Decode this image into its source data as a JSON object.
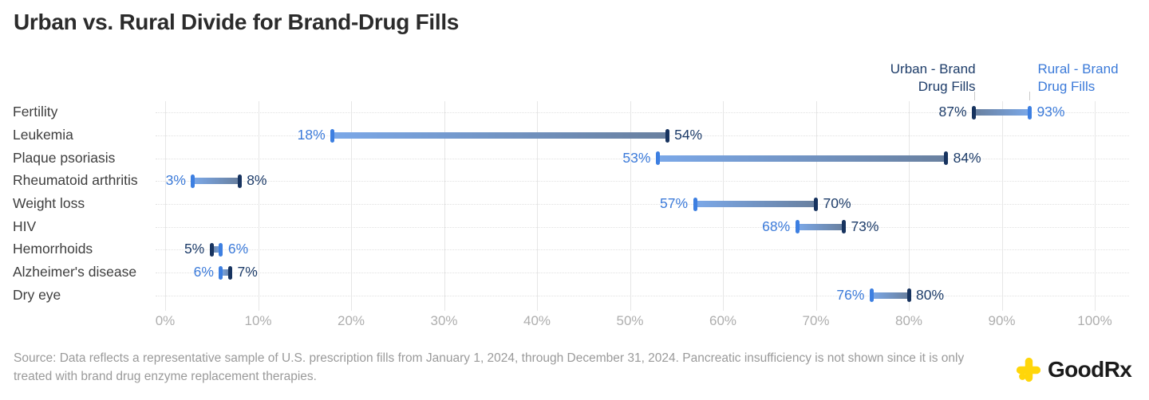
{
  "title": "Urban vs. Rural Divide for Brand-Drug Fills",
  "legend": {
    "urban_label": "Urban - Brand Drug Fills",
    "rural_label": "Rural - Brand Drug Fills"
  },
  "chart_data": {
    "type": "dumbbell",
    "title": "Urban vs. Rural Divide for Brand-Drug Fills",
    "categories": [
      "Fertility",
      "Leukemia",
      "Plaque psoriasis",
      "Rheumatoid arthritis",
      "Weight loss",
      "HIV",
      "Hemorrhoids",
      "Alzheimer's disease",
      "Dry eye"
    ],
    "series": [
      {
        "name": "Urban - Brand Drug Fills",
        "color": "#1d3c69",
        "cap_color": "#17335f",
        "values": [
          87,
          54,
          84,
          8,
          70,
          73,
          5,
          7,
          80
        ]
      },
      {
        "name": "Rural - Brand Drug Fills",
        "color": "#3b7ad9",
        "cap_color": "#3d7fe1",
        "values": [
          93,
          18,
          53,
          3,
          57,
          68,
          6,
          6,
          76
        ]
      }
    ],
    "value_suffix": "%",
    "xlim": [
      0,
      100
    ],
    "xticks": [
      "0%",
      "10%",
      "20%",
      "30%",
      "40%",
      "50%",
      "60%",
      "70%",
      "80%",
      "90%",
      "100%"
    ],
    "grid": "vertical solid gridlines, horizontal dotted row lines",
    "legend_position": "top-right",
    "bar_gradient": {
      "urban_end": "#69809f",
      "rural_end": "#7ba8e8"
    }
  },
  "colors": {
    "urban_text": "#1d3c69",
    "rural_text": "#3b7ad9",
    "axis_label": "#aeaeae",
    "gridline": "#e6e6e6",
    "logo_yellow": "#FFD60A"
  },
  "source": {
    "text": "Source: Data reflects a representative sample of U.S. prescription fills from January 1, 2024, through December 31, 2024. Pancreatic insufficiency is not shown since it is only treated with brand drug enzyme replacement therapies."
  },
  "logo": {
    "text": "GoodRx"
  }
}
